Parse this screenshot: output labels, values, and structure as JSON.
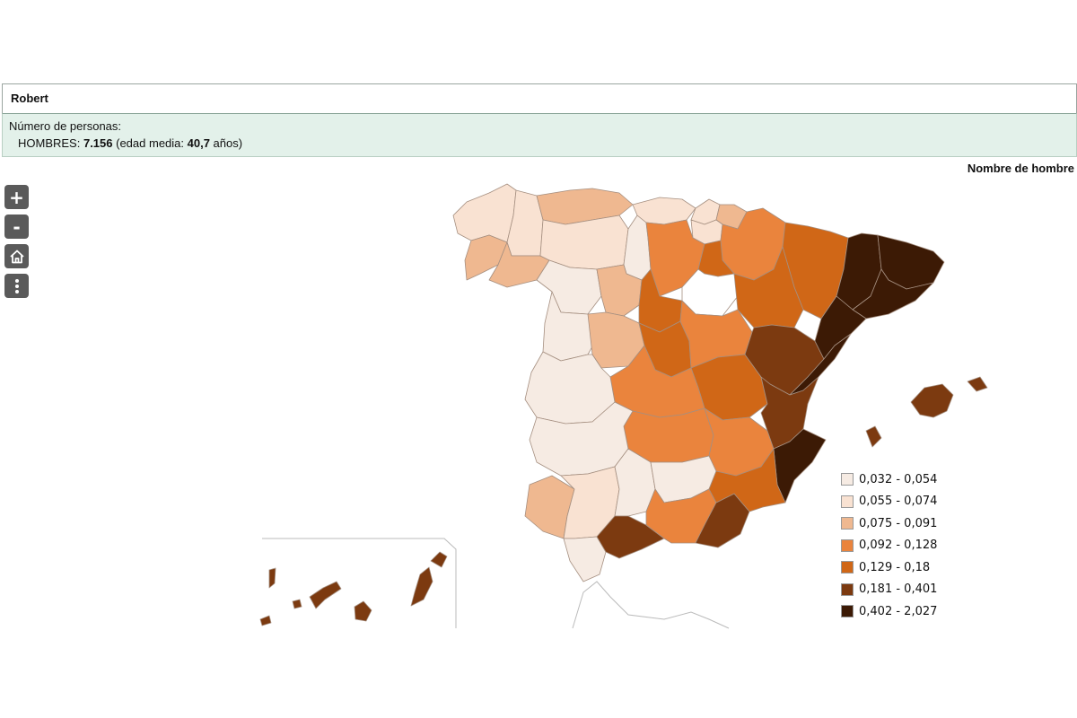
{
  "header": {
    "name": "Robert",
    "count_label": "Número de personas:",
    "men_label": "HOMBRES: ",
    "men_count": "7.156",
    "age_label": " (edad media: ",
    "age_value": "40,7",
    "age_unit": " años)"
  },
  "map": {
    "title": "Nombre de hombre",
    "colors": {
      "c1": "#f6ebe3",
      "c2": "#f9e2d2",
      "c3": "#efb890",
      "c4": "#ea843d",
      "c5": "#d06717",
      "c6": "#7c3a10",
      "c7": "#3c1a05",
      "none": "#ffffff"
    }
  },
  "controls": {
    "zoom_in": "+",
    "zoom_out": "-"
  },
  "legend": {
    "items": [
      {
        "label": "0,032 - 0,054",
        "color": "#f6ebe3"
      },
      {
        "label": "0,055 - 0,074",
        "color": "#f9e2d2"
      },
      {
        "label": "0,075 - 0,091",
        "color": "#efb890"
      },
      {
        "label": "0,092 - 0,128",
        "color": "#ea843d"
      },
      {
        "label": "0,129 - 0,18",
        "color": "#d06717"
      },
      {
        "label": "0,181 - 0,401",
        "color": "#7c3a10"
      },
      {
        "label": "0,402 - 2,027",
        "color": "#3c1a05"
      }
    ]
  }
}
